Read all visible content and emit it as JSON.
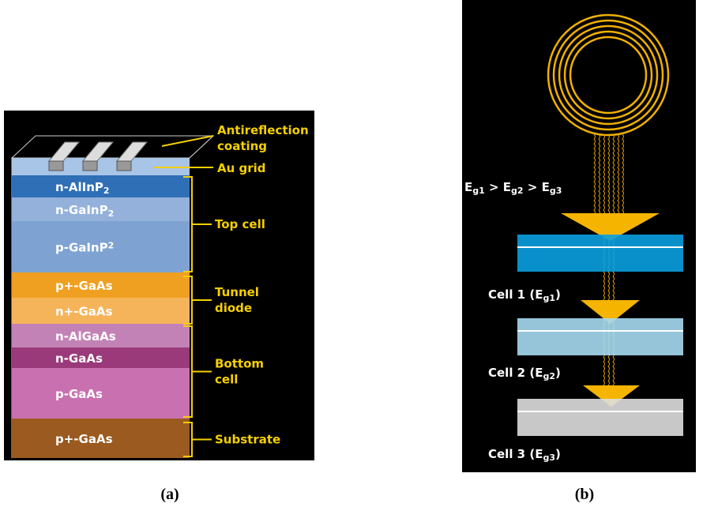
{
  "panel_a": {
    "caption": "(a)",
    "annotations": {
      "antireflection": [
        "Antireflection",
        "coating"
      ],
      "au_grid": "Au grid"
    },
    "layers": [
      {
        "parts": [
          {
            "text": "n-AlInP"
          },
          {
            "text": "2",
            "sub": true
          }
        ]
      },
      {
        "parts": [
          {
            "text": "n-GaInP"
          },
          {
            "text": "2",
            "sub": true
          }
        ]
      },
      {
        "parts": [
          {
            "text": "p-GaInP"
          },
          {
            "text": "2",
            "sup": true
          }
        ]
      },
      {
        "parts": [
          {
            "text": "p+-GaAs"
          }
        ]
      },
      {
        "parts": [
          {
            "text": "n+-GaAs"
          }
        ]
      },
      {
        "parts": [
          {
            "text": "n-AlGaAs"
          }
        ]
      },
      {
        "parts": [
          {
            "text": "n-GaAs"
          }
        ]
      },
      {
        "parts": [
          {
            "text": "p-GaAs"
          }
        ]
      },
      {
        "parts": [
          {
            "text": "p+-GaAs"
          }
        ]
      }
    ],
    "groups": [
      [
        "Top cell"
      ],
      [
        "Tunnel",
        "diode"
      ],
      [
        "Bottom",
        "cell"
      ],
      [
        "Substrate"
      ]
    ]
  },
  "panel_b": {
    "caption": "(b)",
    "relation": {
      "parts": [
        {
          "text": "E"
        },
        {
          "text": "g1",
          "sub": true
        },
        {
          "text": " > E"
        },
        {
          "text": "g2",
          "sub": true
        },
        {
          "text": " > E"
        },
        {
          "text": "g3",
          "sub": true
        }
      ]
    },
    "cells": [
      {
        "parts": [
          {
            "text": "Cell 1 (E"
          },
          {
            "text": "g1",
            "sub": true
          },
          {
            "text": ")"
          }
        ]
      },
      {
        "parts": [
          {
            "text": "Cell 2 (E"
          },
          {
            "text": "g2",
            "sub": true
          },
          {
            "text": ")"
          }
        ]
      },
      {
        "parts": [
          {
            "text": "Cell 3 (E"
          },
          {
            "text": "g3",
            "sub": true
          },
          {
            "text": ")"
          }
        ]
      }
    ]
  }
}
